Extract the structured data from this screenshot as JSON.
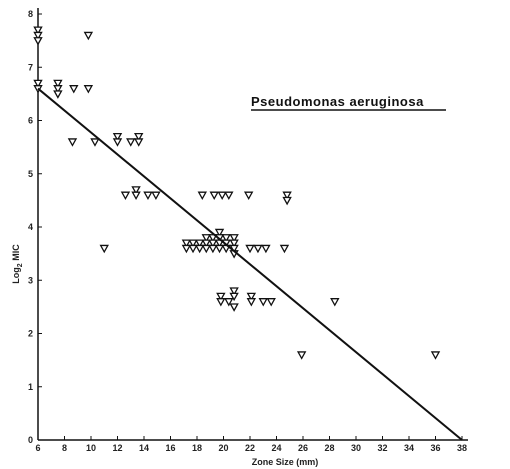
{
  "chart_data": {
    "type": "scatter",
    "title": "Pseudomonas aeruginosa",
    "xlabel": "Zone Size (mm)",
    "ylabel": "Log2 MIC",
    "ylabel_base": "Log",
    "ylabel_sub": "2",
    "ylabel_rest": " MIC",
    "xlim": [
      6,
      38
    ],
    "ylim": [
      0,
      8
    ],
    "x_ticks": [
      6,
      8,
      10,
      12,
      14,
      16,
      18,
      20,
      22,
      24,
      26,
      28,
      30,
      32,
      34,
      36,
      38
    ],
    "y_ticks": [
      0,
      1,
      2,
      3,
      4,
      5,
      6,
      7,
      8
    ],
    "grid": false,
    "marker": "open-triangle-down",
    "points": [
      {
        "x": 6,
        "y": 7.7
      },
      {
        "x": 6,
        "y": 7.6
      },
      {
        "x": 6,
        "y": 7.5
      },
      {
        "x": 6,
        "y": 6.7
      },
      {
        "x": 6,
        "y": 6.6
      },
      {
        "x": 7.5,
        "y": 6.7
      },
      {
        "x": 7.5,
        "y": 6.6
      },
      {
        "x": 7.5,
        "y": 6.5
      },
      {
        "x": 8.7,
        "y": 6.6
      },
      {
        "x": 9.8,
        "y": 6.6
      },
      {
        "x": 9.8,
        "y": 7.6
      },
      {
        "x": 8.6,
        "y": 5.6
      },
      {
        "x": 10.3,
        "y": 5.6
      },
      {
        "x": 12,
        "y": 5.7
      },
      {
        "x": 12,
        "y": 5.6
      },
      {
        "x": 13,
        "y": 5.6
      },
      {
        "x": 13.6,
        "y": 5.7
      },
      {
        "x": 13.6,
        "y": 5.6
      },
      {
        "x": 12.6,
        "y": 4.6
      },
      {
        "x": 13.4,
        "y": 4.7
      },
      {
        "x": 13.4,
        "y": 4.6
      },
      {
        "x": 14.3,
        "y": 4.6
      },
      {
        "x": 14.9,
        "y": 4.6
      },
      {
        "x": 11,
        "y": 3.6
      },
      {
        "x": 18.4,
        "y": 4.6
      },
      {
        "x": 19.3,
        "y": 4.6
      },
      {
        "x": 19.9,
        "y": 4.6
      },
      {
        "x": 20.4,
        "y": 4.6
      },
      {
        "x": 21.9,
        "y": 4.6
      },
      {
        "x": 24.8,
        "y": 4.6
      },
      {
        "x": 24.8,
        "y": 4.5
      },
      {
        "x": 17.2,
        "y": 3.7
      },
      {
        "x": 17.2,
        "y": 3.6
      },
      {
        "x": 17.7,
        "y": 3.7
      },
      {
        "x": 17.7,
        "y": 3.6
      },
      {
        "x": 18.2,
        "y": 3.7
      },
      {
        "x": 18.2,
        "y": 3.6
      },
      {
        "x": 18.7,
        "y": 3.8
      },
      {
        "x": 18.7,
        "y": 3.7
      },
      {
        "x": 18.7,
        "y": 3.6
      },
      {
        "x": 19.2,
        "y": 3.8
      },
      {
        "x": 19.2,
        "y": 3.7
      },
      {
        "x": 19.2,
        "y": 3.6
      },
      {
        "x": 19.7,
        "y": 3.9
      },
      {
        "x": 19.7,
        "y": 3.8
      },
      {
        "x": 19.7,
        "y": 3.7
      },
      {
        "x": 19.7,
        "y": 3.6
      },
      {
        "x": 20.2,
        "y": 3.8
      },
      {
        "x": 20.2,
        "y": 3.7
      },
      {
        "x": 20.2,
        "y": 3.6
      },
      {
        "x": 20.8,
        "y": 3.8
      },
      {
        "x": 20.8,
        "y": 3.7
      },
      {
        "x": 20.8,
        "y": 3.6
      },
      {
        "x": 20.8,
        "y": 3.5
      },
      {
        "x": 22.0,
        "y": 3.6
      },
      {
        "x": 22.6,
        "y": 3.6
      },
      {
        "x": 23.2,
        "y": 3.6
      },
      {
        "x": 24.6,
        "y": 3.6
      },
      {
        "x": 19.8,
        "y": 2.7
      },
      {
        "x": 19.8,
        "y": 2.6
      },
      {
        "x": 20.4,
        "y": 2.6
      },
      {
        "x": 20.8,
        "y": 2.8
      },
      {
        "x": 20.8,
        "y": 2.7
      },
      {
        "x": 20.8,
        "y": 2.5
      },
      {
        "x": 22.1,
        "y": 2.7
      },
      {
        "x": 22.1,
        "y": 2.6
      },
      {
        "x": 23.0,
        "y": 2.6
      },
      {
        "x": 23.6,
        "y": 2.6
      },
      {
        "x": 28.4,
        "y": 2.6
      },
      {
        "x": 25.9,
        "y": 1.6
      },
      {
        "x": 36.0,
        "y": 1.6
      }
    ],
    "regression_line": {
      "x": [
        6,
        38
      ],
      "y": [
        6.6,
        0
      ]
    }
  }
}
